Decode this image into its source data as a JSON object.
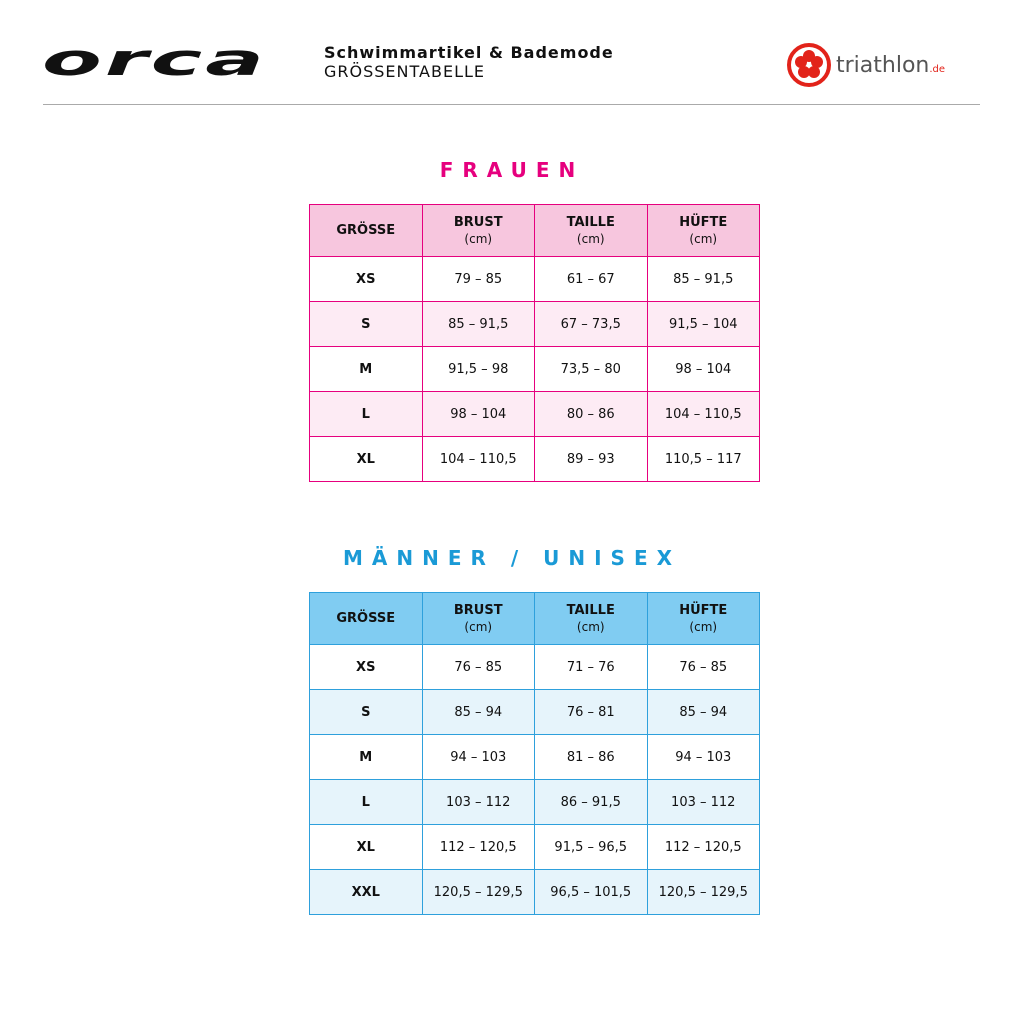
{
  "header": {
    "logo": "orca",
    "subtitle": "Schwimmartikel & Bademode",
    "title": "GRÖSSENTABELLE",
    "partner": "triathlon",
    "partner_suffix": ".de"
  },
  "colors": {
    "women": "#e6007e",
    "men": "#1a9ad6",
    "partner": "#e2231a"
  },
  "columns": [
    {
      "label": "GRÖSSE",
      "unit": ""
    },
    {
      "label": "BRUST",
      "unit": "(cm)"
    },
    {
      "label": "TAILLE",
      "unit": "(cm)"
    },
    {
      "label": "HÜFTE",
      "unit": "(cm)"
    }
  ],
  "women": {
    "title": "FRAUEN",
    "rows": [
      [
        "XS",
        "79 – 85",
        "61 – 67",
        "85 – 91,5"
      ],
      [
        "S",
        "85 – 91,5",
        "67 – 73,5",
        "91,5 – 104"
      ],
      [
        "M",
        "91,5 – 98",
        "73,5 – 80",
        "98 – 104"
      ],
      [
        "L",
        "98 – 104",
        "80 – 86",
        "104 – 110,5"
      ],
      [
        "XL",
        "104 – 110,5",
        "89 – 93",
        "110,5 – 117"
      ]
    ]
  },
  "men": {
    "title": "MÄNNER / UNISEX",
    "rows": [
      [
        "XS",
        "76 – 85",
        "71 – 76",
        "76 – 85"
      ],
      [
        "S",
        "85 – 94",
        "76 – 81",
        "85 – 94"
      ],
      [
        "M",
        "94 – 103",
        "81 – 86",
        "94 – 103"
      ],
      [
        "L",
        "103 – 112",
        "86 – 91,5",
        "103 – 112"
      ],
      [
        "XL",
        "112 – 120,5",
        "91,5 – 96,5",
        "112 – 120,5"
      ],
      [
        "XXL",
        "120,5 – 129,5",
        "96,5 – 101,5",
        "120,5 – 129,5"
      ]
    ]
  }
}
